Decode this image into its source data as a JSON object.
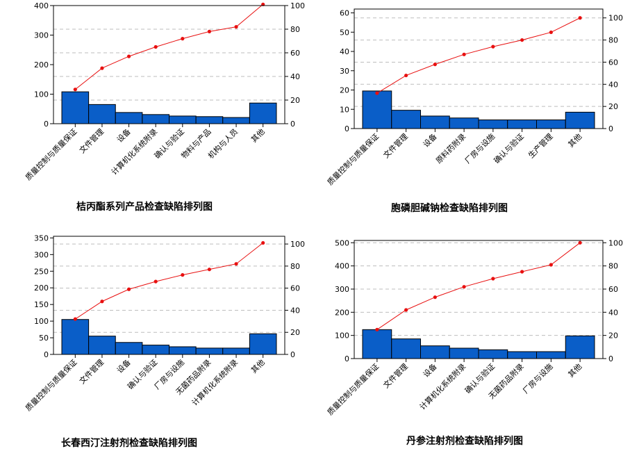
{
  "chart_data": [
    {
      "type": "bar",
      "title": "桔丙酯系列产品检查缺陷排列图",
      "categories": [
        "质量控制与质量保证",
        "文件管理",
        "设备",
        "计算机化系统附录",
        "确认与验证",
        "物料与产品",
        "机构与人员",
        "其他"
      ],
      "series": [
        {
          "type": "bar",
          "axis": "left",
          "values": [
            108,
            65,
            38,
            31,
            26,
            24,
            21,
            70
          ]
        },
        {
          "type": "line",
          "axis": "right",
          "values": [
            29,
            47,
            57,
            65,
            72,
            78,
            82,
            101
          ]
        }
      ],
      "ylim": [
        0,
        400
      ],
      "yticks": [
        0,
        100,
        200,
        300,
        400
      ],
      "y2lim": [
        0,
        100
      ],
      "y2ticks": [
        0,
        20,
        40,
        60,
        80,
        100
      ],
      "grid": true,
      "bar_color": "#0a5ec8",
      "line_color": "#e81010"
    },
    {
      "type": "bar",
      "title": "胞磷胆碱钠检查缺陷排列图",
      "categories": [
        "质量控制与质量保证",
        "文件管理",
        "设备",
        "原料药附录",
        "厂房与设施",
        "确认与验证",
        "生产管理",
        "其他"
      ],
      "series": [
        {
          "type": "bar",
          "axis": "left",
          "values": [
            19.5,
            9.5,
            6.5,
            5.5,
            4.5,
            4.5,
            4.5,
            8.5
          ]
        },
        {
          "type": "line",
          "axis": "right",
          "values": [
            32,
            48,
            58,
            67,
            74,
            80,
            87,
            100
          ]
        }
      ],
      "ylim": [
        0,
        62
      ],
      "yticks": [
        0,
        10,
        20,
        30,
        40,
        50,
        60
      ],
      "y2lim": [
        0,
        108
      ],
      "y2ticks": [
        0,
        20,
        40,
        60,
        80,
        100
      ],
      "grid": true,
      "bar_color": "#0a5ec8",
      "line_color": "#e81010"
    },
    {
      "type": "bar",
      "title": "长春西汀注射剂检查缺陷排列图",
      "categories": [
        "质量控制与质量保证",
        "文件管理",
        "设备",
        "确认与验证",
        "厂房与设施",
        "无菌药品附录",
        "计算机化系统附录",
        "其他"
      ],
      "series": [
        {
          "type": "bar",
          "axis": "left",
          "values": [
            105,
            55,
            36,
            28,
            23,
            19,
            19,
            62
          ]
        },
        {
          "type": "line",
          "axis": "right",
          "values": [
            32,
            48,
            59,
            66,
            72,
            77,
            82,
            101
          ]
        }
      ],
      "ylim": [
        0,
        355
      ],
      "yticks": [
        0,
        50,
        100,
        150,
        200,
        250,
        300,
        350
      ],
      "y2lim": [
        0,
        107
      ],
      "y2ticks": [
        0,
        20,
        40,
        60,
        80,
        100
      ],
      "grid": true,
      "bar_color": "#0a5ec8",
      "line_color": "#e81010"
    },
    {
      "type": "bar",
      "title": "丹参注射剂检查缺陷排列图",
      "categories": [
        "质量控制与质量保证",
        "文件管理",
        "设备",
        "计算机化系统附录",
        "确认与验证",
        "无菌药品附录",
        "厂房与设施",
        "其他"
      ],
      "series": [
        {
          "type": "bar",
          "axis": "left",
          "values": [
            125,
            85,
            55,
            45,
            38,
            30,
            30,
            98
          ]
        },
        {
          "type": "line",
          "axis": "right",
          "values": [
            25,
            42,
            53,
            62,
            69,
            75,
            81,
            100
          ]
        }
      ],
      "ylim": [
        0,
        510
      ],
      "yticks": [
        0,
        100,
        200,
        300,
        400,
        500
      ],
      "y2lim": [
        0,
        102
      ],
      "y2ticks": [
        0,
        20,
        40,
        60,
        80,
        100
      ],
      "grid": true,
      "bar_color": "#0a5ec8",
      "line_color": "#e81010"
    }
  ]
}
